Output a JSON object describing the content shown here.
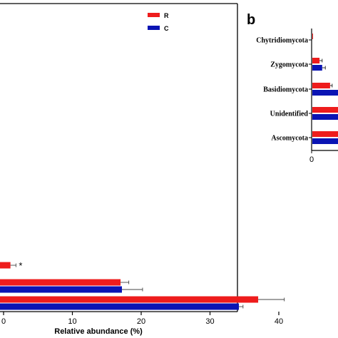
{
  "colors": {
    "R": "#ee1c1c",
    "C": "#0a14b4"
  },
  "chart_data": [
    {
      "type": "bar",
      "orientation": "horizontal",
      "panel": "",
      "xlabel": "Relative abundance (%)",
      "xlim": [
        0,
        45
      ],
      "xticks": [
        0,
        10,
        20,
        30,
        40
      ],
      "xtick_labels": [
        "0",
        "10",
        "20",
        "30",
        "40"
      ],
      "legend": {
        "placement": "top-right",
        "entries": [
          "R",
          "C"
        ]
      },
      "groups": [
        {
          "R": {
            "value": 1.0,
            "err": 0.8
          },
          "sig": "*"
        },
        {
          "R": {
            "value": 17.0,
            "err": 1.2
          },
          "C": {
            "value": 17.2,
            "err": 3.0
          }
        },
        {
          "R": {
            "value": 37.0,
            "err": 3.8
          },
          "C": {
            "value": 34.2,
            "err": 0.6
          }
        }
      ]
    },
    {
      "type": "bar",
      "orientation": "horizontal",
      "panel": "b",
      "xlim": [
        0,
        5
      ],
      "xticks": [
        0
      ],
      "xtick_labels": [
        "0"
      ],
      "categories": [
        "Chytridiomycota",
        "Zygomycota",
        "Basidiomycota",
        "Unidentified",
        "Ascomycota"
      ],
      "series": [
        {
          "name": "R",
          "values": [
            0.05,
            1.5,
            3.5,
            5.0,
            5.0
          ],
          "errors": [
            0,
            0.5,
            0.4,
            0,
            0
          ]
        },
        {
          "name": "C",
          "values": [
            0,
            2.0,
            5.0,
            5.0,
            5.0
          ],
          "errors": [
            0,
            0.6,
            0,
            0,
            0
          ]
        }
      ]
    }
  ]
}
